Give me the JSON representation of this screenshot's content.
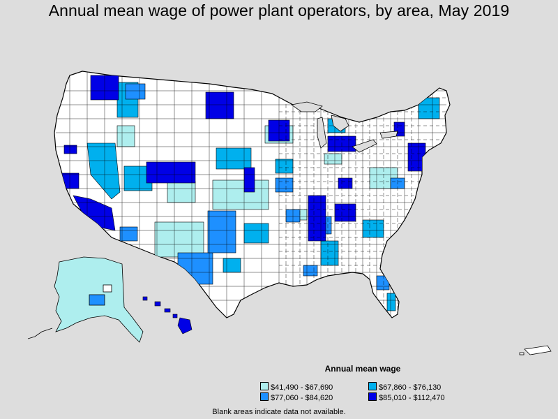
{
  "title": "Annual mean wage of power plant operators, by area, May 2019",
  "legend": {
    "title": "Annual mean wage",
    "items": [
      {
        "label": "$41,490 - $67,690",
        "color": "#aeeeee"
      },
      {
        "label": "$67,860 - $76,130",
        "color": "#00b0ee"
      },
      {
        "label": "$77,060 - $84,620",
        "color": "#1e90ff"
      },
      {
        "label": "$85,010 - $112,470",
        "color": "#0000e6"
      }
    ]
  },
  "footnote": "Blank areas indicate data not available.",
  "colors": {
    "background": "#dddddd",
    "no_data": "#ffffff",
    "border": "#000000"
  }
}
